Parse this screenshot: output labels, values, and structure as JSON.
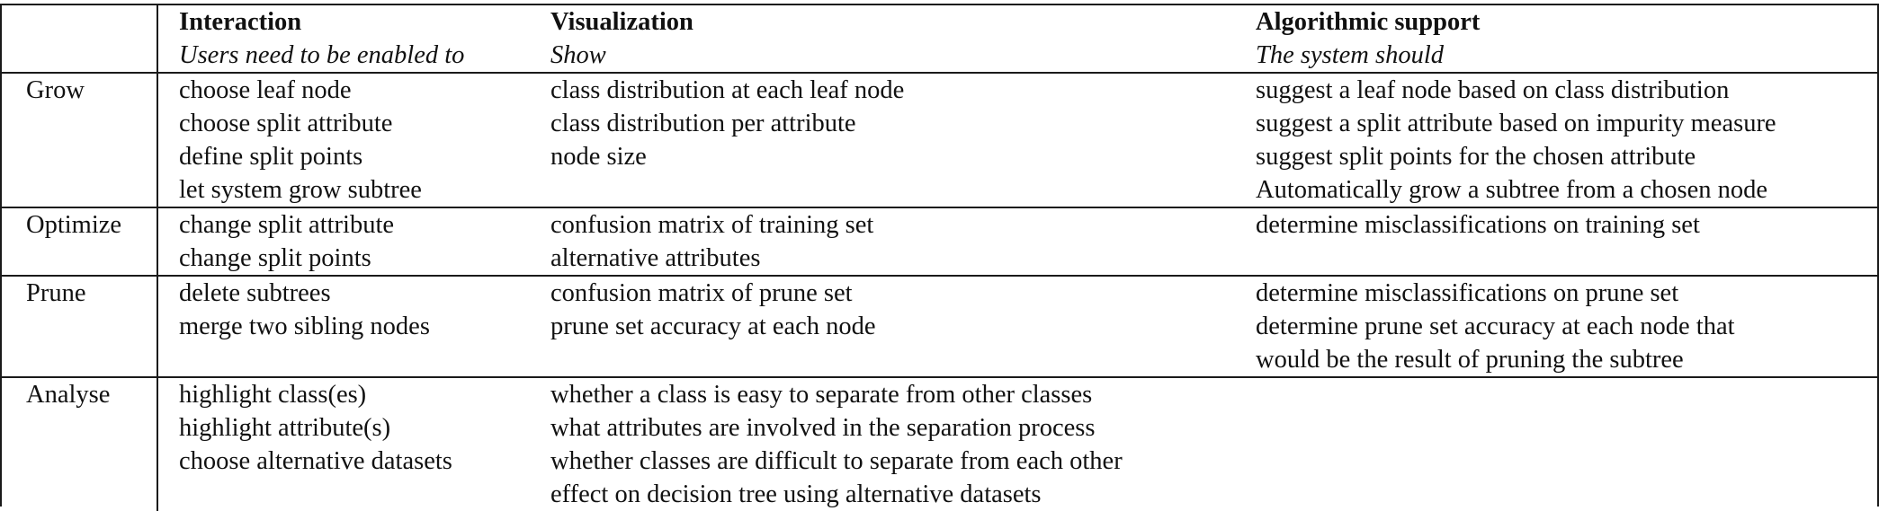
{
  "header": {
    "columns": [
      {
        "title": "Interaction",
        "subtitle": "Users need to be enabled to"
      },
      {
        "title": "Visualization",
        "subtitle": "Show"
      },
      {
        "title": "Algorithmic support",
        "subtitle": "The system should"
      }
    ]
  },
  "rows": [
    {
      "label": "Grow",
      "interaction": [
        "choose leaf node",
        "choose split attribute",
        "define split points",
        "let system grow subtree"
      ],
      "visualization": [
        "class distribution at each leaf node",
        "class distribution per attribute",
        "node size"
      ],
      "algorithmic": [
        "suggest a leaf node based on class distribution",
        "suggest a split attribute based on impurity measure",
        "suggest split points for the chosen attribute",
        "Automatically grow a subtree from a chosen node"
      ]
    },
    {
      "label": "Optimize",
      "interaction": [
        "change split attribute",
        "change split points"
      ],
      "visualization": [
        "confusion matrix of training set",
        "alternative attributes"
      ],
      "algorithmic": [
        "determine misclassifications on training set"
      ]
    },
    {
      "label": "Prune",
      "interaction": [
        "delete subtrees",
        "merge two sibling nodes"
      ],
      "visualization": [
        "confusion matrix of prune set",
        "prune set accuracy at each node"
      ],
      "algorithmic": [
        "determine misclassifications on prune set",
        "determine prune set accuracy at each node that",
        "would be the result of pruning the subtree"
      ]
    },
    {
      "label": "Analyse",
      "interaction": [
        "highlight class(es)",
        "highlight attribute(s)",
        "choose alternative datasets"
      ],
      "visualization": [
        "whether a class is easy to separate from other classes",
        "what attributes are involved in the separation process",
        "whether classes are difficult to separate from each other",
        "effect on decision tree using alternative datasets"
      ],
      "algorithmic": []
    }
  ]
}
